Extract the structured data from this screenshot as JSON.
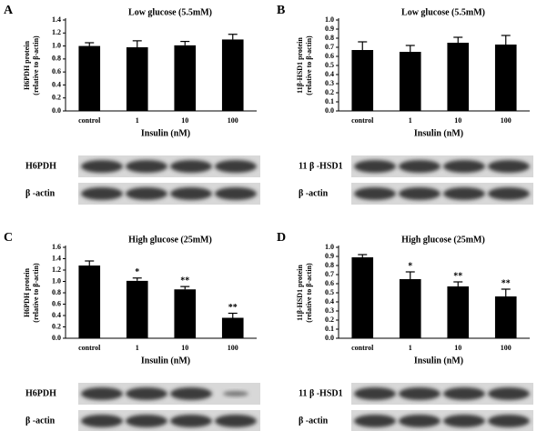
{
  "chart_data": [
    {
      "type": "bar",
      "panel_label": "A",
      "title": "Low glucose (5.5mM)",
      "ylabel": [
        "H6PDH protein",
        "(relative to β-actin)"
      ],
      "xlabel": "Insulin (nM)",
      "categories": [
        "control",
        "1",
        "10",
        "100"
      ],
      "values": [
        1.0,
        0.98,
        1.01,
        1.1
      ],
      "errors": [
        0.05,
        0.1,
        0.06,
        0.08
      ],
      "color": "#000000",
      "ylim": [
        0,
        1.4
      ],
      "yticks": [
        {
          "value": 0,
          "label": "0.0"
        },
        {
          "value": 0.2,
          "label": "0.2"
        },
        {
          "value": 0.4,
          "label": "0.4"
        },
        {
          "value": 0.6,
          "label": "0.6"
        },
        {
          "value": 0.8,
          "label": "0.8"
        },
        {
          "value": 1.0,
          "label": "1.0"
        },
        {
          "value": 1.2,
          "label": "1.2"
        },
        {
          "value": 1.4,
          "label": "1.4"
        }
      ],
      "blot_rows": [
        "H6PDH",
        "β -actin"
      ]
    },
    {
      "type": "bar",
      "panel_label": "B",
      "title": "Low glucose (5.5mM)",
      "ylabel": [
        "11β-HSD1 protein",
        "(relative to β-actin)"
      ],
      "xlabel": "Insulin (nM)",
      "categories": [
        "control",
        "1",
        "10",
        "100"
      ],
      "values": [
        0.67,
        0.65,
        0.75,
        0.73
      ],
      "errors": [
        0.09,
        0.07,
        0.06,
        0.1
      ],
      "color": "#000000",
      "ylim": [
        0,
        1.0
      ],
      "yticks": [
        {
          "value": 0,
          "label": "0.0"
        },
        {
          "value": 0.1,
          "label": "0.1"
        },
        {
          "value": 0.2,
          "label": "0.2"
        },
        {
          "value": 0.3,
          "label": "0.3"
        },
        {
          "value": 0.4,
          "label": "0.4"
        },
        {
          "value": 0.5,
          "label": "0.5"
        },
        {
          "value": 0.6,
          "label": "0.6"
        },
        {
          "value": 0.7,
          "label": "0.7"
        },
        {
          "value": 0.8,
          "label": "0.8"
        },
        {
          "value": 0.9,
          "label": "0.9"
        },
        {
          "value": 1.0,
          "label": "1.0"
        }
      ],
      "blot_rows": [
        "11 β -HSD1",
        "β -actin"
      ]
    },
    {
      "type": "bar",
      "panel_label": "C",
      "title": "High glucose (25mM)",
      "ylabel": [
        "H6PDH protein",
        "(relative to β-actin)"
      ],
      "xlabel": "Insulin (nM)",
      "categories": [
        "control",
        "1",
        "10",
        "100"
      ],
      "values": [
        1.28,
        1.01,
        0.86,
        0.36
      ],
      "errors": [
        0.08,
        0.05,
        0.05,
        0.08
      ],
      "significance": [
        null,
        "*",
        "**",
        "**"
      ],
      "color": "#000000",
      "ylim": [
        0,
        1.6
      ],
      "yticks": [
        {
          "value": 0,
          "label": "0.0"
        },
        {
          "value": 0.2,
          "label": "0.2"
        },
        {
          "value": 0.4,
          "label": "0.4"
        },
        {
          "value": 0.6,
          "label": "0.6"
        },
        {
          "value": 0.8,
          "label": "0.8"
        },
        {
          "value": 1.0,
          "label": "1.0"
        },
        {
          "value": 1.2,
          "label": "1.2"
        },
        {
          "value": 1.4,
          "label": "1.4"
        },
        {
          "value": 1.6,
          "label": "1.6"
        }
      ],
      "blot_rows": [
        "H6PDH",
        "β -actin"
      ]
    },
    {
      "type": "bar",
      "panel_label": "D",
      "title": "High glucose (25mM)",
      "ylabel": [
        "11β-HSD1 protein",
        "(relative to β-actin)"
      ],
      "xlabel": "Insulin (nM)",
      "categories": [
        "control",
        "1",
        "10",
        "100"
      ],
      "values": [
        0.89,
        0.65,
        0.57,
        0.46
      ],
      "errors": [
        0.03,
        0.08,
        0.05,
        0.08
      ],
      "significance": [
        null,
        "*",
        "**",
        "**"
      ],
      "color": "#000000",
      "ylim": [
        0,
        1.0
      ],
      "yticks": [
        {
          "value": 0,
          "label": "0.0"
        },
        {
          "value": 0.1,
          "label": "0.1"
        },
        {
          "value": 0.2,
          "label": "0.2"
        },
        {
          "value": 0.3,
          "label": "0.3"
        },
        {
          "value": 0.4,
          "label": "0.4"
        },
        {
          "value": 0.5,
          "label": "0.5"
        },
        {
          "value": 0.6,
          "label": "0.6"
        },
        {
          "value": 0.7,
          "label": "0.7"
        },
        {
          "value": 0.8,
          "label": "0.8"
        },
        {
          "value": 0.9,
          "label": "0.9"
        },
        {
          "value": 1.0,
          "label": "1.0"
        }
      ],
      "blot_rows": [
        "11 β -HSD1",
        "β -actin"
      ]
    }
  ]
}
